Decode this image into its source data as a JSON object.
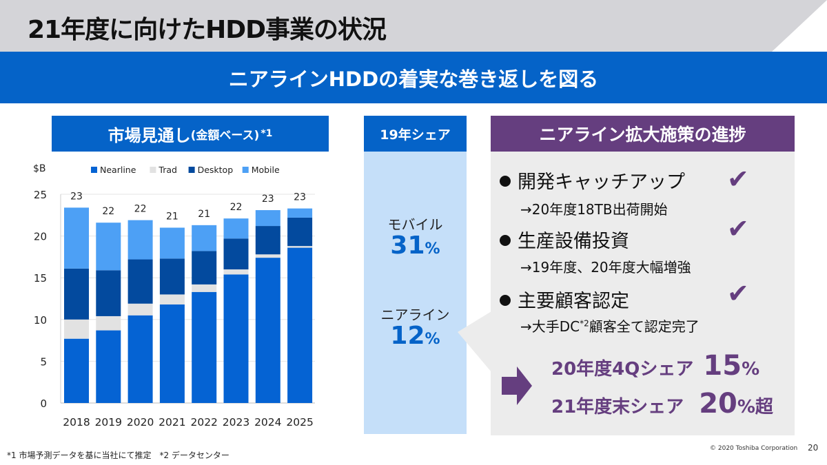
{
  "title": "21年度に向けたHDD事業の状況",
  "banner": "ニアラインHDDの着実な巻き返しを図る",
  "chart_header": {
    "main": "市場見通し",
    "sub": "(金額ベース)",
    "note": "*1"
  },
  "share": {
    "header": "19年シェア",
    "items": [
      {
        "label": "モバイル",
        "value": "31",
        "unit": "%"
      },
      {
        "label": "ニアライン",
        "value": "12",
        "unit": "%"
      }
    ]
  },
  "progress": {
    "header": "ニアライン拡大施策の進捗",
    "items": [
      {
        "label": "開発キャッチアップ",
        "detail": "→20年度18TB出荷開始",
        "check": "✔"
      },
      {
        "label": "生産設備投資",
        "detail": "→19年度、20年度大幅増強",
        "check": "✔"
      },
      {
        "label": "主要顧客認定",
        "detail_pre": "→大手DC",
        "detail_sup": "*2",
        "detail_post": "顧客全て認定完了",
        "check": "✔"
      }
    ],
    "goals": [
      {
        "label": "20年度4Qシェア",
        "value": "15",
        "unit": "%",
        "suffix": ""
      },
      {
        "label": "21年度末シェア",
        "value": "20",
        "unit": "%",
        "suffix": "超"
      }
    ]
  },
  "footnote": "*1 市場予測データを基に当社にて推定　*2 データセンター",
  "copyright": "© 2020 Toshiba Corporation",
  "page_number": "20",
  "chart_data": {
    "type": "bar",
    "stacked": true,
    "ylabel": "$B",
    "ylim": [
      0,
      25
    ],
    "yticks": [
      0,
      5,
      10,
      15,
      20,
      25
    ],
    "grid": true,
    "legend": "top",
    "categories": [
      "2018",
      "2019",
      "2020",
      "2021",
      "2022",
      "2023",
      "2024",
      "2025"
    ],
    "series": [
      {
        "name": "Nearline",
        "color": "#0563d3",
        "values": [
          7.7,
          8.7,
          10.5,
          11.8,
          13.3,
          15.4,
          17.4,
          18.6
        ]
      },
      {
        "name": "Trad",
        "color": "#e2e2e2",
        "values": [
          2.3,
          1.7,
          1.4,
          1.2,
          0.9,
          0.6,
          0.4,
          0.2
        ]
      },
      {
        "name": "Desktop",
        "color": "#034a9e",
        "values": [
          6.1,
          5.5,
          5.3,
          4.3,
          4.0,
          3.7,
          3.4,
          3.4
        ]
      },
      {
        "name": "Mobile",
        "color": "#4da0f5",
        "values": [
          7.3,
          5.7,
          4.7,
          3.7,
          3.1,
          2.4,
          1.9,
          1.1
        ]
      }
    ],
    "totals": [
      "23",
      "22",
      "22",
      "21",
      "21",
      "22",
      "23",
      "23"
    ]
  }
}
